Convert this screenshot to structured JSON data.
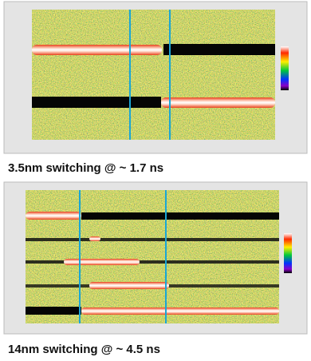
{
  "captions": [
    "3.5nm switching @ ~ 1.7 ns",
    "14nm switching @ ~ 4.5 ns"
  ]
}
